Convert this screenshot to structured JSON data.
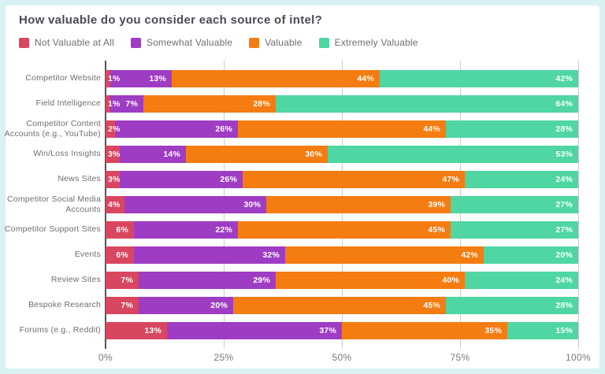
{
  "title": "How valuable do you consider each source of intel?",
  "colors": {
    "frame_background": "#d9f1f2",
    "card_background": "#ffffff",
    "title_text": "#4a4a54",
    "label_text": "#6e6e6e",
    "gridline": "#cccccc",
    "axis_line": "#54545a",
    "bar_value_text": "#ffffff"
  },
  "chart_data": {
    "type": "bar",
    "orientation": "horizontal",
    "stacked": true,
    "title": "How valuable do you consider each source of intel?",
    "xlabel": "",
    "ylabel": "",
    "xlim": [
      0,
      100
    ],
    "x_ticks": [
      "0%",
      "25%",
      "50%",
      "75%",
      "100%"
    ],
    "grid": true,
    "legend_position": "top",
    "value_label_suffix": "%",
    "categories": [
      "Competitor Website",
      "Field Intelligence",
      "Competitor Content Accounts (e.g., YouTube)",
      "Win/Loss Insights",
      "News Sites",
      "Competitor Social Media Accounts",
      "Competitor Support Sites",
      "Events",
      "Review Sites",
      "Bespoke Research",
      "Forums (e.g., Reddit)"
    ],
    "series": [
      {
        "name": "Not Valuable at All",
        "color": "#d94660",
        "values": [
          1,
          1,
          2,
          3,
          3,
          4,
          6,
          6,
          7,
          7,
          13
        ]
      },
      {
        "name": "Somewhat Valuable",
        "color": "#9e3dc4",
        "values": [
          13,
          7,
          26,
          14,
          26,
          30,
          22,
          32,
          29,
          20,
          37
        ]
      },
      {
        "name": "Valuable",
        "color": "#f57c11",
        "values": [
          44,
          28,
          44,
          30,
          47,
          39,
          45,
          42,
          40,
          45,
          35
        ]
      },
      {
        "name": "Extremely Valuable",
        "color": "#4fd6a2",
        "values": [
          42,
          64,
          28,
          53,
          24,
          27,
          27,
          20,
          24,
          28,
          15
        ]
      }
    ]
  }
}
